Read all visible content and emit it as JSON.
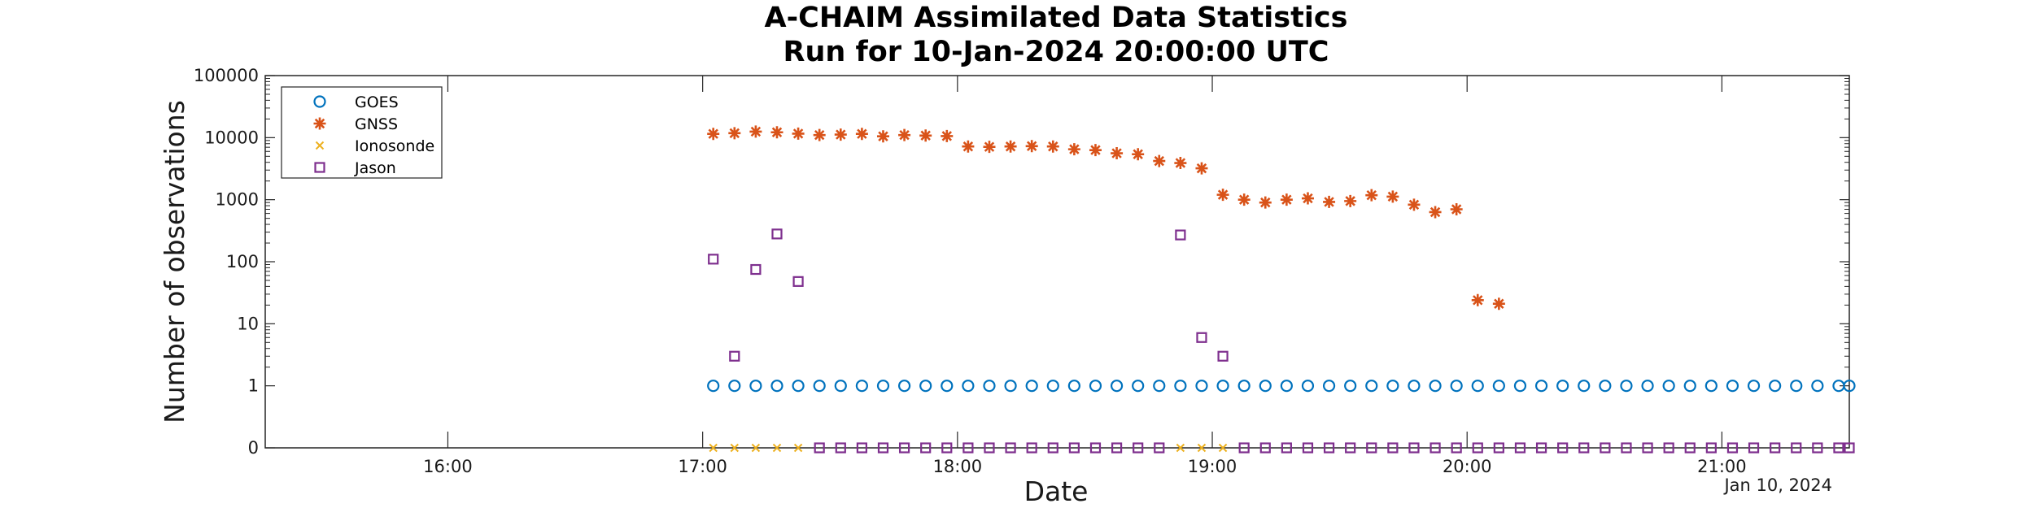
{
  "chart_data": {
    "type": "scatter",
    "title": [
      "A-CHAIM Assimilated Data Statistics",
      "Run for 10-Jan-2024 20:00:00 UTC"
    ],
    "xlabel": "Date",
    "ylabel": "Number of observations",
    "x_date_label": "Jan 10, 2024",
    "xlim": [
      "15:17",
      "21:30"
    ],
    "x_ticks": [
      "16:00",
      "17:00",
      "18:00",
      "19:00",
      "20:00",
      "21:00"
    ],
    "y_scale": "log",
    "y_zero_row": true,
    "ylim": [
      0,
      100000
    ],
    "y_ticks": [
      "0",
      "1",
      "10",
      "100",
      "1000",
      "10000",
      "100000"
    ],
    "grid": false,
    "legend_position": "top-left",
    "series": [
      {
        "name": "GOES",
        "marker": "circle",
        "color": "#0072BD",
        "x": [
          "17:02.5",
          "17:07.5",
          "17:12.5",
          "17:17.5",
          "17:22.5",
          "17:27.5",
          "17:32.5",
          "17:37.5",
          "17:42.5",
          "17:47.5",
          "17:52.5",
          "17:57.5",
          "18:02.5",
          "18:07.5",
          "18:12.5",
          "18:17.5",
          "18:22.5",
          "18:27.5",
          "18:32.5",
          "18:37.5",
          "18:42.5",
          "18:47.5",
          "18:52.5",
          "18:57.5",
          "19:02.5",
          "19:07.5",
          "19:12.5",
          "19:17.5",
          "19:22.5",
          "19:27.5",
          "19:32.5",
          "19:37.5",
          "19:42.5",
          "19:47.5",
          "19:52.5",
          "19:57.5",
          "20:02.5",
          "20:07.5",
          "20:12.5",
          "20:17.5",
          "20:22.5",
          "20:27.5",
          "20:32.5",
          "20:37.5",
          "20:42.5",
          "20:47.5",
          "20:52.5",
          "20:57.5",
          "21:02.5",
          "21:07.5",
          "21:12.5",
          "21:17.5",
          "21:22.5",
          "21:27.5",
          "21:30"
        ],
        "y": [
          1,
          1,
          1,
          1,
          1,
          1,
          1,
          1,
          1,
          1,
          1,
          1,
          1,
          1,
          1,
          1,
          1,
          1,
          1,
          1,
          1,
          1,
          1,
          1,
          1,
          1,
          1,
          1,
          1,
          1,
          1,
          1,
          1,
          1,
          1,
          1,
          1,
          1,
          1,
          1,
          1,
          1,
          1,
          1,
          1,
          1,
          1,
          1,
          1,
          1,
          1,
          1,
          1,
          1,
          1
        ]
      },
      {
        "name": "GNSS",
        "marker": "star",
        "color": "#D95319",
        "x": [
          "17:02.5",
          "17:07.5",
          "17:12.5",
          "17:17.5",
          "17:22.5",
          "17:27.5",
          "17:32.5",
          "17:37.5",
          "17:42.5",
          "17:47.5",
          "17:52.5",
          "17:57.5",
          "18:02.5",
          "18:07.5",
          "18:12.5",
          "18:17.5",
          "18:22.5",
          "18:27.5",
          "18:32.5",
          "18:37.5",
          "18:42.5",
          "18:47.5",
          "18:52.5",
          "18:57.5",
          "19:02.5",
          "19:07.5",
          "19:12.5",
          "19:17.5",
          "19:22.5",
          "19:27.5",
          "19:32.5",
          "19:37.5",
          "19:42.5",
          "19:47.5",
          "19:52.5",
          "19:57.5",
          "20:02.5",
          "20:07.5"
        ],
        "y": [
          11500,
          11800,
          12500,
          12200,
          11600,
          11000,
          11200,
          11500,
          10500,
          11000,
          10800,
          10600,
          7200,
          7100,
          7200,
          7300,
          7200,
          6500,
          6300,
          5600,
          5400,
          4200,
          3900,
          3200,
          1200,
          1000,
          900,
          1000,
          1050,
          920,
          950,
          1180,
          1120,
          830,
          630,
          700,
          24,
          21
        ]
      },
      {
        "name": "Ionosonde",
        "marker": "x",
        "color": "#EDB120",
        "x": [
          "17:02.5",
          "17:07.5",
          "17:12.5",
          "17:17.5",
          "17:22.5",
          "18:52.5",
          "18:57.5",
          "19:02.5"
        ],
        "y": [
          0,
          0,
          0,
          0,
          0,
          0,
          0,
          0
        ]
      },
      {
        "name": "Jason",
        "marker": "square",
        "color": "#7E2F8E",
        "x": [
          "17:02.5",
          "17:07.5",
          "17:12.5",
          "17:17.5",
          "17:22.5",
          "17:27.5",
          "17:32.5",
          "17:37.5",
          "17:42.5",
          "17:47.5",
          "17:52.5",
          "17:57.5",
          "18:02.5",
          "18:07.5",
          "18:12.5",
          "18:17.5",
          "18:22.5",
          "18:27.5",
          "18:32.5",
          "18:37.5",
          "18:42.5",
          "18:47.5",
          "18:52.5",
          "18:57.5",
          "19:02.5",
          "19:07.5",
          "19:12.5",
          "19:17.5",
          "19:22.5",
          "19:27.5",
          "19:32.5",
          "19:37.5",
          "19:42.5",
          "19:47.5",
          "19:52.5",
          "19:57.5",
          "20:02.5",
          "20:07.5",
          "20:12.5",
          "20:17.5",
          "20:22.5",
          "20:27.5",
          "20:32.5",
          "20:37.5",
          "20:42.5",
          "20:47.5",
          "20:52.5",
          "20:57.5",
          "21:02.5",
          "21:07.5",
          "21:12.5",
          "21:17.5",
          "21:22.5",
          "21:27.5",
          "21:30"
        ],
        "y": [
          110,
          3,
          75,
          280,
          48,
          0,
          0,
          0,
          0,
          0,
          0,
          0,
          0,
          0,
          0,
          0,
          0,
          0,
          0,
          0,
          0,
          0,
          270,
          6,
          3,
          0,
          0,
          0,
          0,
          0,
          0,
          0,
          0,
          0,
          0,
          0,
          0,
          0,
          0,
          0,
          0,
          0,
          0,
          0,
          0,
          0,
          0,
          0,
          0,
          0,
          0,
          0,
          0,
          0,
          0
        ]
      }
    ]
  }
}
